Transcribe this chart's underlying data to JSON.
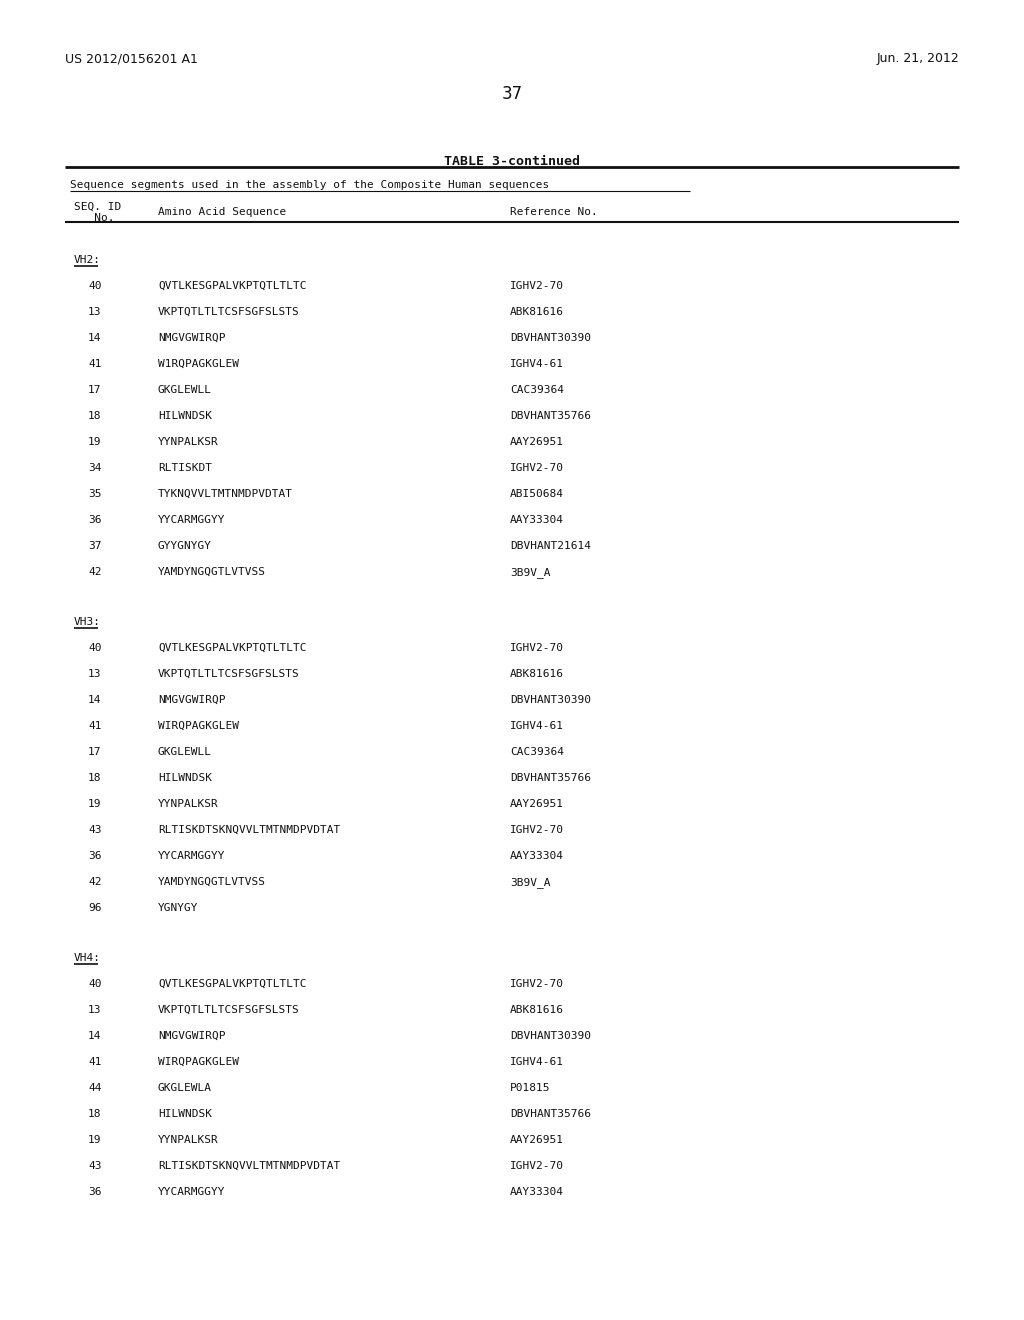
{
  "header_left": "US 2012/0156201 A1",
  "header_right": "Jun. 21, 2012",
  "page_number": "37",
  "table_title": "TABLE 3-continued",
  "table_subtitle": "Sequence segments used in the assembly of the Composite Human sequences",
  "sections": [
    {
      "name": "VH2:",
      "rows": [
        [
          "40",
          "QVTLKESGPALVKPTQTLTLTC",
          "IGHV2-70"
        ],
        [
          "13",
          "VKPTQTLTLTCSFSGFSLSTS",
          "ABK81616"
        ],
        [
          "14",
          "NMGVGWIRQP",
          "DBVHANT30390"
        ],
        [
          "41",
          "W1RQPAGKGLEW",
          "IGHV4-61"
        ],
        [
          "17",
          "GKGLEWLL",
          "CAC39364"
        ],
        [
          "18",
          "HILWNDSK",
          "DBVHANT35766"
        ],
        [
          "19",
          "YYNPALKSR",
          "AAY26951"
        ],
        [
          "34",
          "RLTISKDT",
          "IGHV2-70"
        ],
        [
          "35",
          "TYKNQVVLTMTNMDPVDTAT",
          "ABI50684"
        ],
        [
          "36",
          "YYCARMGGYY",
          "AAY33304"
        ],
        [
          "37",
          "GYYGNYGY",
          "DBVHANT21614"
        ],
        [
          "42",
          "YAMDYNGQGTLVTVSS",
          "3B9V_A"
        ]
      ]
    },
    {
      "name": "VH3:",
      "rows": [
        [
          "40",
          "QVTLKESGPALVKPTQTLTLTC",
          "IGHV2-70"
        ],
        [
          "13",
          "VKPTQTLTLTCSFSGFSLSTS",
          "ABK81616"
        ],
        [
          "14",
          "NMGVGWIRQP",
          "DBVHANT30390"
        ],
        [
          "41",
          "WIRQPAGKGLEW",
          "IGHV4-61"
        ],
        [
          "17",
          "GKGLEWLL",
          "CAC39364"
        ],
        [
          "18",
          "HILWNDSK",
          "DBVHANT35766"
        ],
        [
          "19",
          "YYNPALKSR",
          "AAY26951"
        ],
        [
          "43",
          "RLTISKDTSKNQVVLTMTNMDPVDTAT",
          "IGHV2-70"
        ],
        [
          "36",
          "YYCARMGGYY",
          "AAY33304"
        ],
        [
          "42",
          "YAMDYNGQGTLVTVSS",
          "3B9V_A"
        ],
        [
          "96",
          "YGNYGY",
          ""
        ]
      ]
    },
    {
      "name": "VH4:",
      "rows": [
        [
          "40",
          "QVTLKESGPALVKPTQTLTLTC",
          "IGHV2-70"
        ],
        [
          "13",
          "VKPTQTLTLTCSFSGFSLSTS",
          "ABK81616"
        ],
        [
          "14",
          "NMGVGWIRQP",
          "DBVHANT30390"
        ],
        [
          "41",
          "WIRQPAGKGLEW",
          "IGHV4-61"
        ],
        [
          "44",
          "GKGLEWLA",
          "P01815"
        ],
        [
          "18",
          "HILWNDSK",
          "DBVHANT35766"
        ],
        [
          "19",
          "YYNPALKSR",
          "AAY26951"
        ],
        [
          "43",
          "RLTISKDTSKNQVVLTMTNMDPVDTAT",
          "IGHV2-70"
        ],
        [
          "36",
          "YYCARMGGYY",
          "AAY33304"
        ]
      ]
    }
  ],
  "bg_color": "#ffffff"
}
